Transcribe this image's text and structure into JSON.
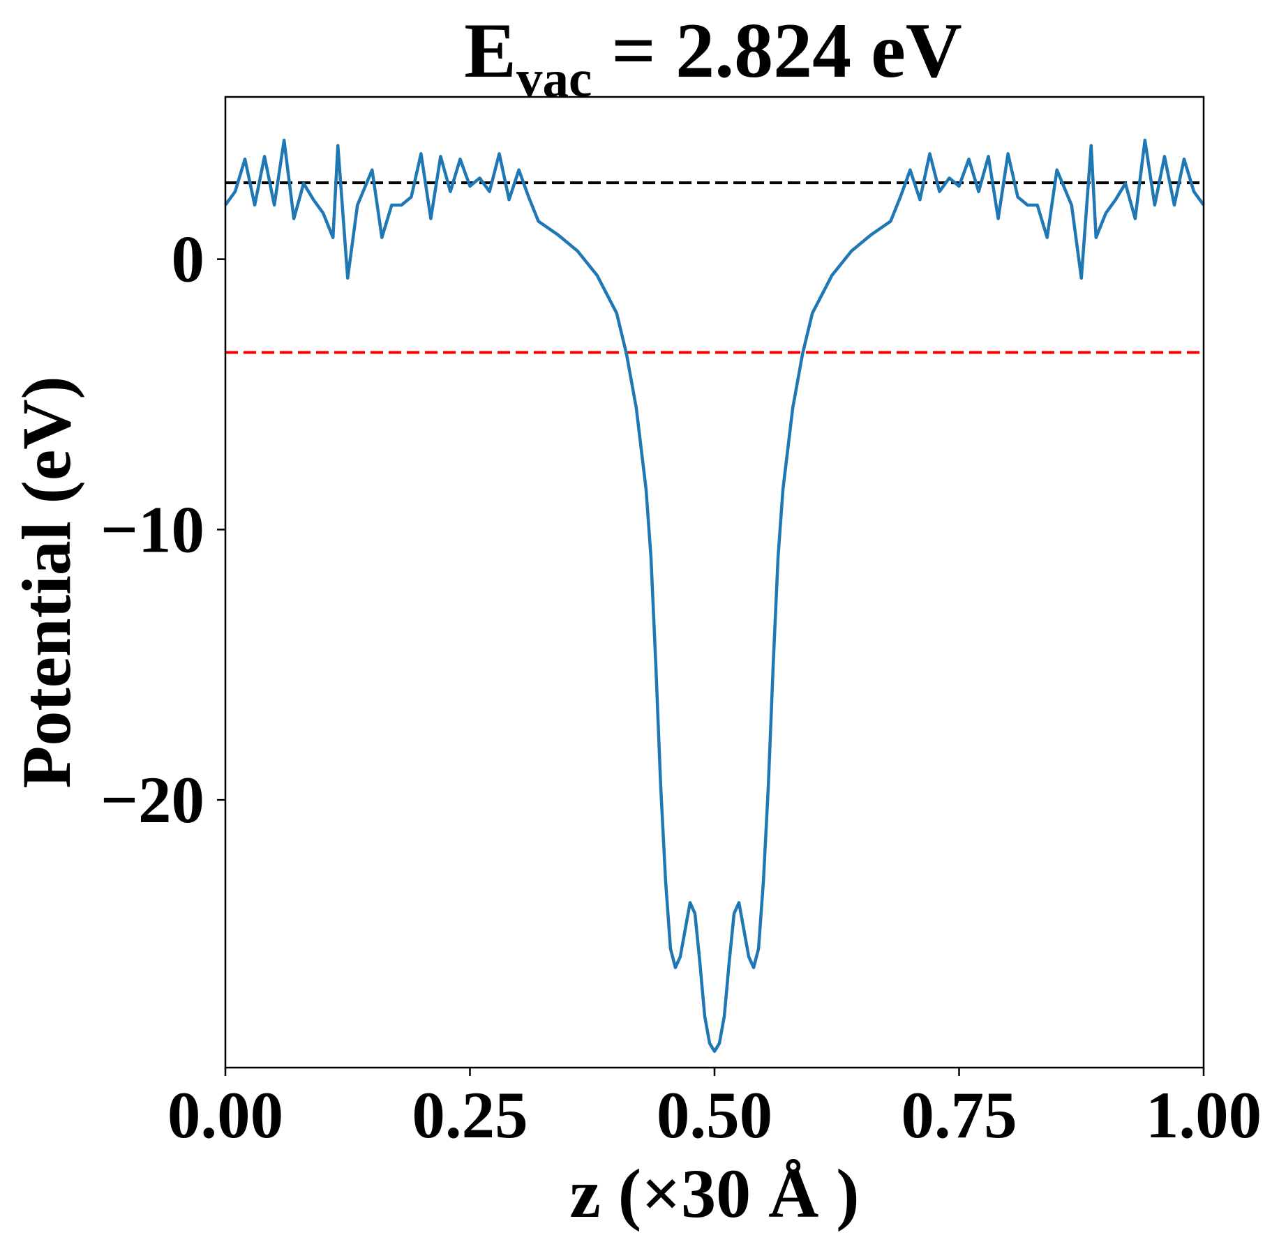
{
  "chart_data": {
    "type": "line",
    "title": {
      "main": "E",
      "sub": "vac",
      "rest": " = 2.824 eV"
    },
    "x_label": "z (×30 Å )",
    "y_label": "Potential (eV)",
    "xlim": [
      0,
      1
    ],
    "ylim": [
      -29.9,
      6.0
    ],
    "xticks": [
      {
        "value": 0,
        "label": "0.00"
      },
      {
        "value": 0.25,
        "label": "0.25"
      },
      {
        "value": 0.5,
        "label": "0.50"
      },
      {
        "value": 0.75,
        "label": "0.75"
      },
      {
        "value": 1,
        "label": "1.00"
      }
    ],
    "yticks": [
      0,
      {
        "value": -10,
        "label": "−10"
      },
      {
        "value": -20,
        "label": "−20"
      }
    ],
    "hlines": [
      {
        "value": 2.824,
        "color": "#000000"
      },
      {
        "value": -3.45,
        "color": "#ff0000"
      }
    ],
    "x": [
      0,
      0.01,
      0.02,
      0.03,
      0.04,
      0.05,
      0.06,
      0.07,
      0.08,
      0.09,
      0.1,
      0.11,
      0.115,
      0.125,
      0.135,
      0.15,
      0.16,
      0.17,
      0.18,
      0.19,
      0.2,
      0.21,
      0.22,
      0.23,
      0.24,
      0.25,
      0.26,
      0.27,
      0.28,
      0.29,
      0.3,
      0.31,
      0.32,
      0.34,
      0.36,
      0.38,
      0.4,
      0.41,
      0.42,
      0.43,
      0.435,
      0.44,
      0.445,
      0.45,
      0.455,
      0.46,
      0.465,
      0.475,
      0.48,
      0.485,
      0.49,
      0.495,
      0.5,
      0.505,
      0.51,
      0.515,
      0.52,
      0.525,
      0.535,
      0.54,
      0.545,
      0.55,
      0.555,
      0.56,
      0.565,
      0.57,
      0.58,
      0.59,
      0.6,
      0.62,
      0.64,
      0.66,
      0.68,
      0.69,
      0.7,
      0.71,
      0.72,
      0.73,
      0.74,
      0.75,
      0.76,
      0.77,
      0.78,
      0.79,
      0.8,
      0.81,
      0.82,
      0.83,
      0.84,
      0.85,
      0.865,
      0.875,
      0.885,
      0.89,
      0.9,
      0.91,
      0.92,
      0.93,
      0.94,
      0.95,
      0.96,
      0.97,
      0.98,
      0.99,
      1.0
    ],
    "series": [
      {
        "color": "#1f77b4",
        "values": [
          2.0,
          2.5,
          3.7,
          2.0,
          3.8,
          2.0,
          4.4,
          1.5,
          2.8,
          2.2,
          1.7,
          0.8,
          4.2,
          -0.7,
          2.0,
          3.3,
          0.8,
          2.0,
          2.0,
          2.3,
          3.9,
          1.5,
          3.8,
          2.5,
          3.7,
          2.7,
          3.0,
          2.5,
          3.9,
          2.2,
          3.3,
          2.3,
          1.4,
          0.9,
          0.3,
          -0.6,
          -2.0,
          -3.5,
          -5.5,
          -8.5,
          -11,
          -15,
          -19.5,
          -23,
          -25.5,
          -26.2,
          -25.8,
          -23.8,
          -24.2,
          -26,
          -28,
          -29,
          -29.3,
          -29,
          -28,
          -26,
          -24.2,
          -23.8,
          -25.8,
          -26.2,
          -25.5,
          -23,
          -19.5,
          -15,
          -11,
          -8.5,
          -5.5,
          -3.5,
          -2.0,
          -0.6,
          0.3,
          0.9,
          1.4,
          2.3,
          3.3,
          2.2,
          3.9,
          2.5,
          3.0,
          2.7,
          3.7,
          2.5,
          3.8,
          1.5,
          3.9,
          2.3,
          2.0,
          2.0,
          0.8,
          3.3,
          2.0,
          -0.7,
          4.2,
          0.8,
          1.7,
          2.2,
          2.8,
          1.5,
          4.4,
          2.0,
          3.8,
          2.0,
          3.7,
          2.5,
          2.0
        ]
      }
    ]
  }
}
